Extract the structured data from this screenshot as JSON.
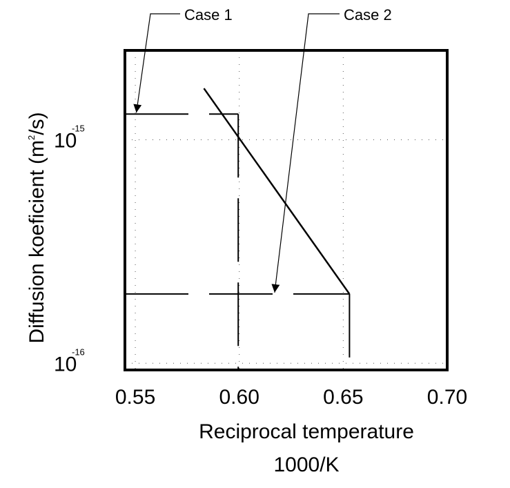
{
  "chart_data": {
    "type": "line",
    "title": "",
    "xlabel": "Reciprocal temperature",
    "xlabel_unit": "1000/K",
    "ylabel_prefix": "Diffusion koeficient (m",
    "ylabel_sup": "2",
    "ylabel_suffix": "/s)",
    "xlim": [
      0.545,
      0.7
    ],
    "ylim_log10": [
      -16.03,
      -14.6
    ],
    "xscale": "linear",
    "yscale": "log",
    "x_ticks": [
      {
        "value": 0.55,
        "label": "0.55"
      },
      {
        "value": 0.6,
        "label": "0.60"
      },
      {
        "value": 0.65,
        "label": "0.65"
      },
      {
        "value": 0.7,
        "label": "0.70"
      }
    ],
    "y_ticks": [
      {
        "log10": -15,
        "base": "10",
        "exp": "-15"
      },
      {
        "log10": -16,
        "base": "10",
        "exp": "-16"
      }
    ],
    "grid": "dotted",
    "series": [
      {
        "name": "Diffusion coefficient",
        "x": [
          0.583,
          0.653
        ],
        "log10_y": [
          -14.77,
          -15.69
        ]
      }
    ],
    "cases": [
      {
        "label": "Case 1",
        "x": 0.5995,
        "log10_y": -14.885,
        "arrow_x": 0.5505
      },
      {
        "label": "Case 2",
        "x": 0.653,
        "log10_y": -15.69,
        "arrow_x": 0.617
      }
    ],
    "colors": {
      "line": "#000000",
      "grid": "#555555",
      "background": "#ffffff"
    }
  }
}
